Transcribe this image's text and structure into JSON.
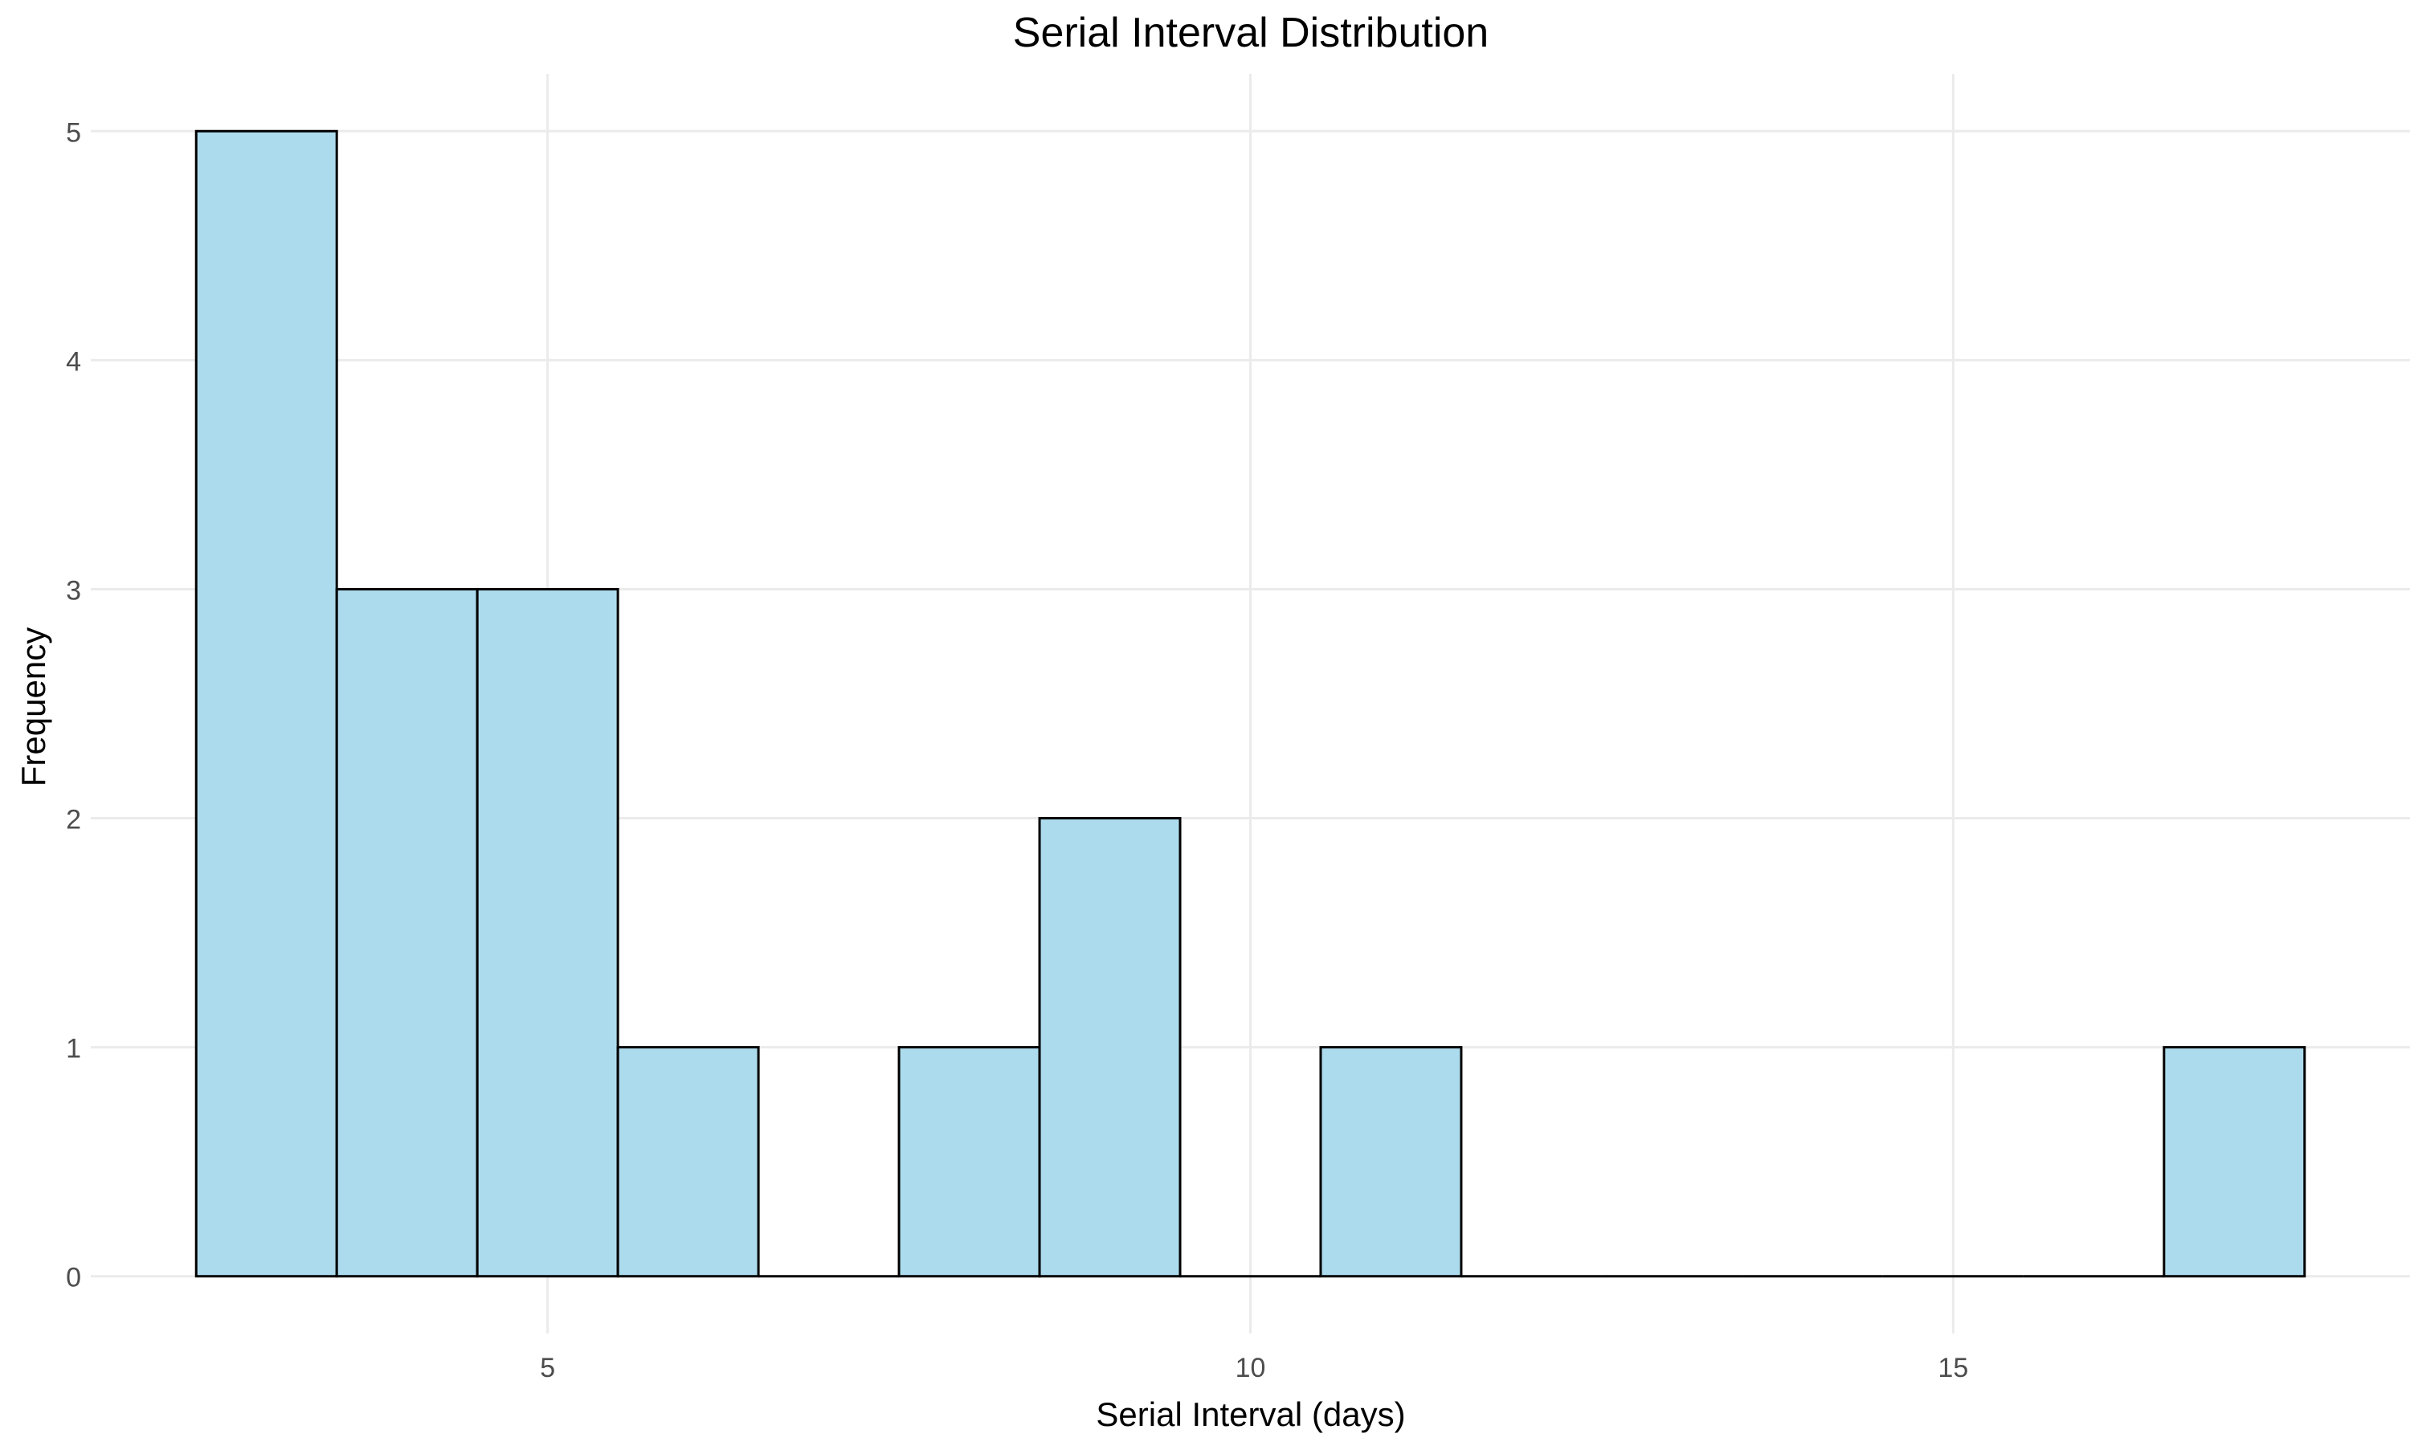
{
  "chart_data": {
    "type": "bar",
    "title": "Serial Interval Distribution",
    "xlabel": "Serial Interval (days)",
    "ylabel": "Frequency",
    "bin_width": 1,
    "bins": [
      {
        "x0": 2.5,
        "x1": 3.5,
        "count": 5
      },
      {
        "x0": 3.5,
        "x1": 4.5,
        "count": 3
      },
      {
        "x0": 4.5,
        "x1": 5.5,
        "count": 3
      },
      {
        "x0": 5.5,
        "x1": 6.5,
        "count": 1
      },
      {
        "x0": 6.5,
        "x1": 7.5,
        "count": 0
      },
      {
        "x0": 7.5,
        "x1": 8.5,
        "count": 1
      },
      {
        "x0": 8.5,
        "x1": 9.5,
        "count": 2
      },
      {
        "x0": 9.5,
        "x1": 10.5,
        "count": 0
      },
      {
        "x0": 10.5,
        "x1": 11.5,
        "count": 1
      },
      {
        "x0": 11.5,
        "x1": 12.5,
        "count": 0
      },
      {
        "x0": 12.5,
        "x1": 13.5,
        "count": 0
      },
      {
        "x0": 13.5,
        "x1": 14.5,
        "count": 0
      },
      {
        "x0": 14.5,
        "x1": 15.5,
        "count": 0
      },
      {
        "x0": 15.5,
        "x1": 16.5,
        "count": 0
      },
      {
        "x0": 16.5,
        "x1": 17.5,
        "count": 1
      }
    ],
    "xlim": [
      1.75,
      18.25
    ],
    "ylim": [
      -0.25,
      5.25
    ],
    "xticks": [
      5,
      10,
      15
    ],
    "yticks": [
      0,
      1,
      2,
      3,
      4,
      5
    ],
    "grid": true,
    "colors": {
      "bar_fill": "#ADDBEE",
      "bar_stroke": "#000000",
      "grid": "#EBEBEB",
      "text": "#000000",
      "tick_text": "#4D4D4D"
    }
  }
}
